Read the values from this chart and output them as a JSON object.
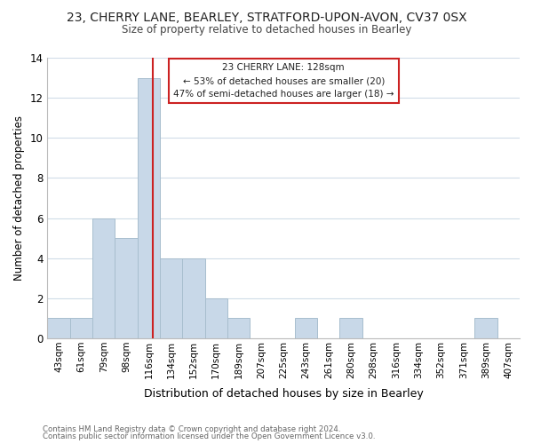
{
  "title_line1": "23, CHERRY LANE, BEARLEY, STRATFORD-UPON-AVON, CV37 0SX",
  "title_line2": "Size of property relative to detached houses in Bearley",
  "xlabel": "Distribution of detached houses by size in Bearley",
  "ylabel": "Number of detached properties",
  "footer_line1": "Contains HM Land Registry data © Crown copyright and database right 2024.",
  "footer_line2": "Contains public sector information licensed under the Open Government Licence v3.0.",
  "bin_labels": [
    "43sqm",
    "61sqm",
    "79sqm",
    "98sqm",
    "116sqm",
    "134sqm",
    "152sqm",
    "170sqm",
    "189sqm",
    "207sqm",
    "225sqm",
    "243sqm",
    "261sqm",
    "280sqm",
    "298sqm",
    "316sqm",
    "334sqm",
    "352sqm",
    "371sqm",
    "389sqm",
    "407sqm"
  ],
  "bin_counts": [
    1,
    1,
    6,
    5,
    13,
    4,
    4,
    2,
    1,
    0,
    0,
    1,
    0,
    1,
    0,
    0,
    0,
    0,
    0,
    1,
    0
  ],
  "bar_color": "#c8d8e8",
  "bar_edge_color": "#a8bece",
  "vline_color": "#cc2222",
  "vline_x_index": 4,
  "annotation_text_line1": "23 CHERRY LANE: 128sqm",
  "annotation_text_line2": "← 53% of detached houses are smaller (20)",
  "annotation_text_line3": "47% of semi-detached houses are larger (18) →",
  "annotation_box_edgecolor": "#cc2222",
  "ylim": [
    0,
    14
  ],
  "yticks": [
    0,
    2,
    4,
    6,
    8,
    10,
    12,
    14
  ],
  "background_color": "#ffffff",
  "grid_color": "#d0dce8"
}
